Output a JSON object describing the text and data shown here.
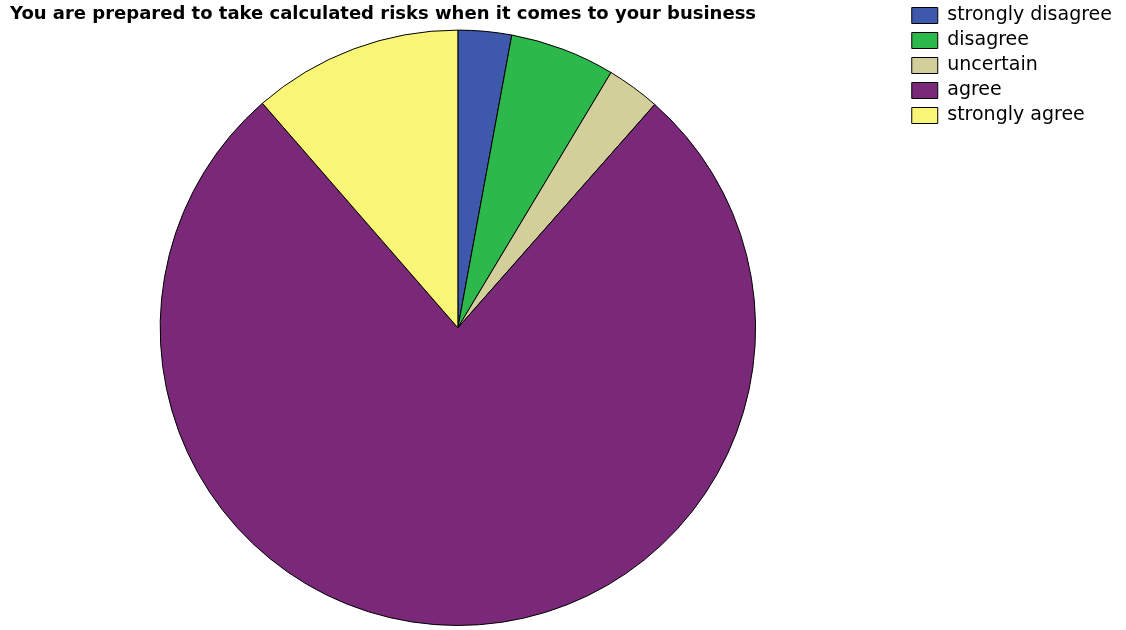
{
  "chart_data": {
    "type": "pie",
    "title": "You are prepared to take calculated risks when it comes to your business",
    "categories": [
      "strongly disagree",
      "disagree",
      "uncertain",
      "agree",
      "strongly agree"
    ],
    "values": [
      2.9,
      5.7,
      2.9,
      77.1,
      11.4
    ],
    "colors": [
      "#3e58ac",
      "#2db84b",
      "#d3cf9a",
      "#7a2878",
      "#f8f577"
    ],
    "legend": "top right"
  }
}
